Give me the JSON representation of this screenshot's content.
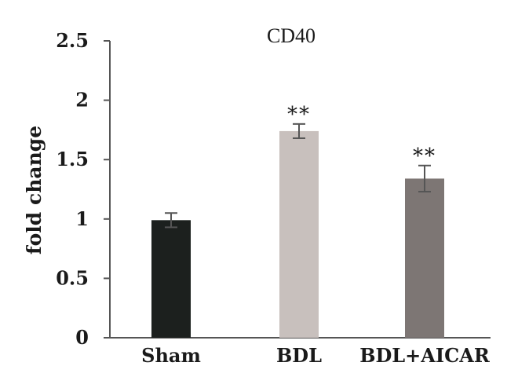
{
  "chart_data": {
    "type": "bar",
    "title": "CD40",
    "xlabel": "",
    "ylabel": "fold change",
    "ylim": [
      0,
      2.5
    ],
    "yticks": [
      "0",
      "0.5",
      "1",
      "1.5",
      "2",
      "2.5"
    ],
    "grid": false,
    "legend": "none",
    "categories": [
      "Sham",
      "BDL",
      "BDL+AICAR"
    ],
    "values": [
      0.99,
      1.74,
      1.34
    ],
    "errors": [
      0.06,
      0.06,
      0.11
    ],
    "annotations": [
      "",
      "**",
      "**"
    ],
    "colors": [
      "#1c201e",
      "#c8c0bd",
      "#7d7674"
    ]
  }
}
